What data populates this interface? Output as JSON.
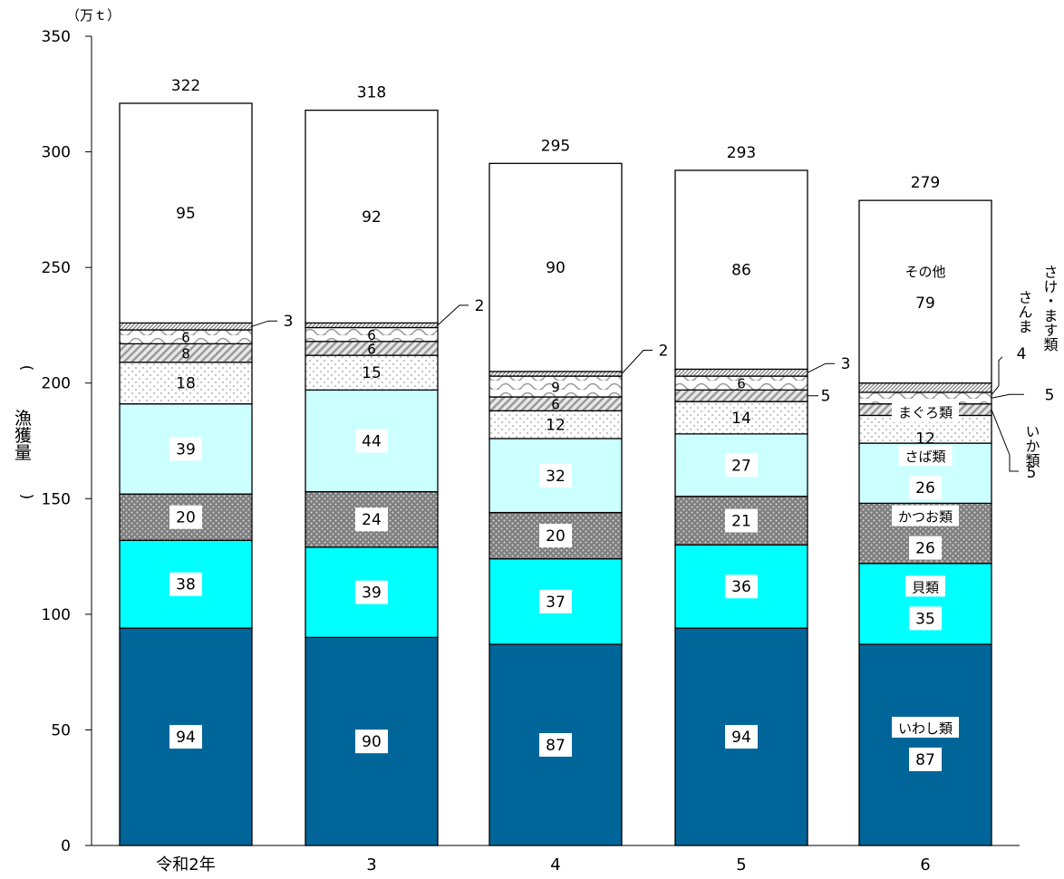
{
  "chart_data": {
    "type": "bar",
    "stacked": true,
    "unit_label": "（万ｔ）",
    "ylabel": "漁獲量",
    "ylim": [
      0,
      350
    ],
    "yticks": [
      0,
      50,
      100,
      150,
      200,
      250,
      300,
      350
    ],
    "categories": [
      "令和2年",
      "3",
      "4",
      "5",
      "6"
    ],
    "totals": [
      322,
      318,
      295,
      293,
      279
    ],
    "series": [
      {
        "name": "いわし類",
        "values": [
          94,
          90,
          87,
          94,
          87
        ],
        "color": "#006699",
        "pattern": "solid"
      },
      {
        "name": "貝類",
        "values": [
          38,
          39,
          37,
          36,
          35
        ],
        "color": "#00ffff",
        "pattern": "solid"
      },
      {
        "name": "かつお類",
        "values": [
          20,
          24,
          20,
          21,
          26
        ],
        "color": "#808080",
        "pattern": "dots"
      },
      {
        "name": "さば類",
        "values": [
          39,
          44,
          32,
          27,
          26
        ],
        "color": "#ccffff",
        "pattern": "solid"
      },
      {
        "name": "まぐろ類",
        "values": [
          18,
          15,
          12,
          14,
          12
        ],
        "color": "#f2f2f2",
        "pattern": "sparse-dots"
      },
      {
        "name": "いか類",
        "values": [
          8,
          6,
          6,
          5,
          5
        ],
        "color": "#d0d0d0",
        "pattern": "diagonal"
      },
      {
        "name": "さんま",
        "values": [
          6,
          6,
          9,
          6,
          5
        ],
        "color": "#ffffff",
        "pattern": "waves"
      },
      {
        "name": "さけ・ます類",
        "values": [
          3,
          2,
          2,
          3,
          4
        ],
        "color": "#ffffff",
        "pattern": "dense-diagonal"
      },
      {
        "name": "その他",
        "values": [
          95,
          92,
          90,
          86,
          79
        ],
        "color": "#ffffff",
        "pattern": "solid"
      }
    ],
    "grid": false,
    "legend": "inline labels on last bar"
  }
}
